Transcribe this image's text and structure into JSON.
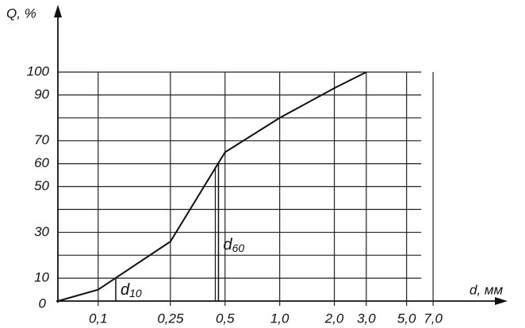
{
  "chart_data": {
    "type": "line",
    "y_label": "Q, %",
    "x_label": "d, мм",
    "x": [
      0.06,
      0.1,
      0.25,
      0.5,
      1.0,
      2.0,
      3.0
    ],
    "values": [
      0,
      5,
      26,
      65,
      80,
      93,
      100
    ],
    "color": "#111111",
    "xscale": "log",
    "xlim": [
      0.06,
      18
    ],
    "ylim": [
      0,
      100
    ],
    "xticks": [
      {
        "value": 0.1,
        "label": "0,1"
      },
      {
        "value": 0.25,
        "label": "0,25"
      },
      {
        "value": 0.5,
        "label": "0,5"
      },
      {
        "value": 1.0,
        "label": "1,0"
      },
      {
        "value": 2.0,
        "label": "2,0"
      },
      {
        "value": 3.0,
        "label": "3,0"
      },
      {
        "value": 5.0,
        "label": "5,0"
      },
      {
        "value": 7.0,
        "label": "7,0"
      }
    ],
    "yticks": [
      0,
      10,
      30,
      50,
      60,
      70,
      90,
      100
    ],
    "ygrid": [
      10,
      20,
      30,
      40,
      50,
      60,
      70,
      80,
      90,
      100
    ],
    "grid": true,
    "annotations": [
      {
        "text": "d",
        "sub": "10",
        "x": 0.125,
        "y": 10
      },
      {
        "text": "d",
        "sub": "60",
        "x": 0.46,
        "y": 60
      }
    ]
  }
}
